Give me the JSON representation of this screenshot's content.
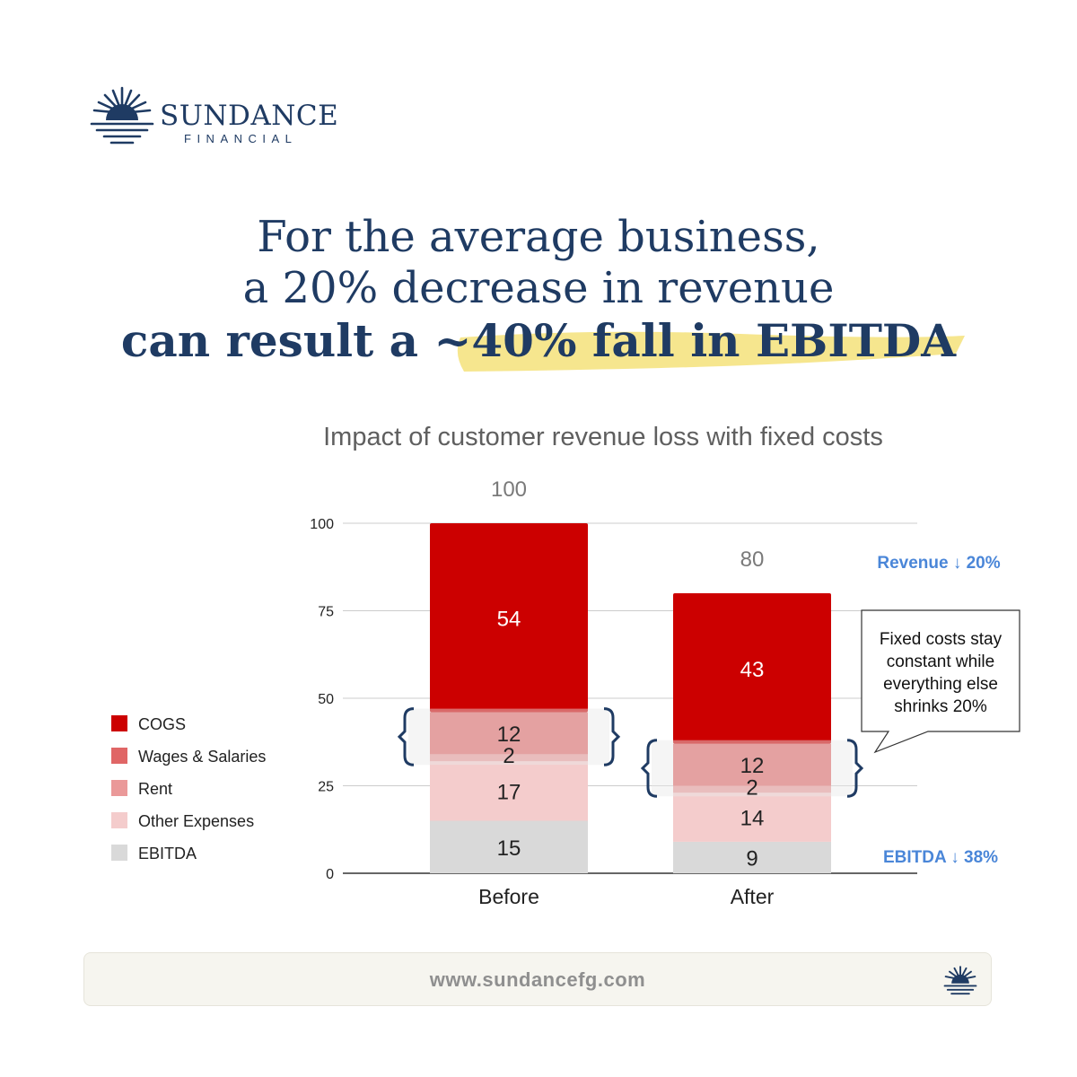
{
  "brand": {
    "name": "SUNDANCE",
    "subname": "FINANCIAL",
    "logo_icon": "sunrise-icon",
    "color": "#1f3b63"
  },
  "headline": {
    "line1": "For the average business,",
    "line2": "a 20% decrease in revenue",
    "line3_prefix": "can result a ~",
    "line3_highlight": "40% fall in EBITDA",
    "highlight_color": "#f5e27a"
  },
  "chart_data": {
    "type": "bar",
    "stacked": true,
    "title": "Impact of customer revenue loss with fixed costs",
    "categories": [
      "Before",
      "After"
    ],
    "totals": [
      100,
      80
    ],
    "ylim": [
      0,
      100
    ],
    "yticks": [
      0,
      25,
      50,
      75,
      100
    ],
    "grid": true,
    "legend_position": "left",
    "series": [
      {
        "name": "EBITDA",
        "values": [
          15,
          9
        ],
        "color": "#d9d9d9",
        "label_color": "#222222"
      },
      {
        "name": "Other Expenses",
        "values": [
          17,
          14
        ],
        "color": "#f4cccc",
        "label_color": "#222222"
      },
      {
        "name": "Rent",
        "values": [
          2,
          2
        ],
        "color": "#ea9999",
        "label_color": "#222222"
      },
      {
        "name": "Wages & Salaries",
        "values": [
          12,
          12
        ],
        "color": "#e06666",
        "label_color": "#222222"
      },
      {
        "name": "COGS",
        "values": [
          54,
          43
        ],
        "color": "#cc0000",
        "label_color": "#ffffff"
      }
    ],
    "legend_order": [
      "COGS",
      "Wages & Salaries",
      "Rent",
      "Other Expenses",
      "EBITDA"
    ],
    "annotations": {
      "revenue_change": "Revenue ↓ 20%",
      "ebitda_change": "EBITDA ↓ 38%",
      "callout_lines": [
        "Fixed costs stay",
        "constant while",
        "everything else",
        "shrinks 20%"
      ]
    }
  },
  "footer": {
    "url": "www.sundancefg.com",
    "icon": "sunrise-icon"
  }
}
